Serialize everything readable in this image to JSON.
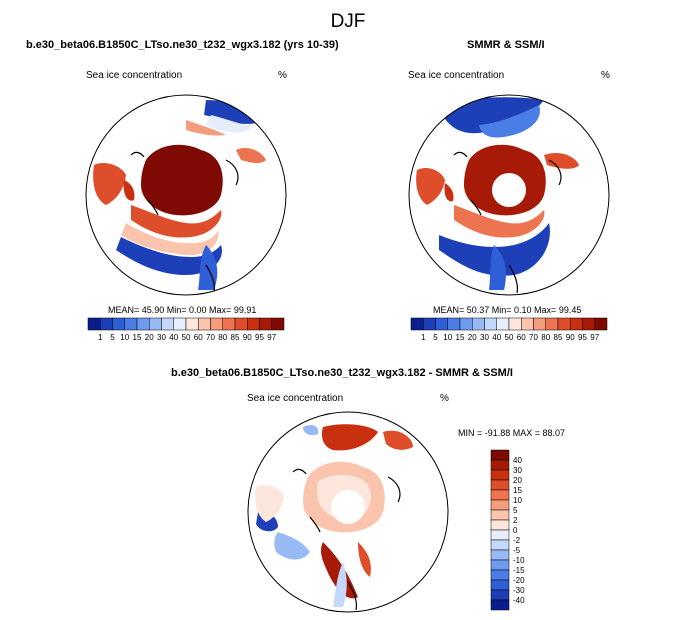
{
  "title": "DJF",
  "panels": [
    {
      "title": "b.e30_beta06.B1850C_LTso.ne30_t232_wgx3.182 (yrs 10-39)",
      "left_label": "Sea ice concentration",
      "right_label": "%",
      "stats": "MEAN=  45.90  Min=   0.00  Max=  99.91",
      "pole_hole": false
    },
    {
      "title": "SMMR & SSM/I",
      "left_label": "Sea ice concentration",
      "right_label": "%",
      "stats": "MEAN=  50.37  Min=   0.10  Max=  99.45",
      "pole_hole": true
    },
    {
      "title": "b.e30_beta06.B1850C_LTso.ne30_t232_wgx3.182 - SMMR & SSM/I",
      "left_label": "Sea ice concentration",
      "right_label": "%",
      "stats": "MIN = -91.88 MAX =  88.07",
      "pole_hole": true
    }
  ],
  "colorbar_horizontal": {
    "labels": [
      "1",
      "5",
      "10",
      "15",
      "20",
      "30",
      "40",
      "50",
      "60",
      "70",
      "80",
      "85",
      "90",
      "95",
      "97"
    ],
    "colors": [
      "#0a1e8c",
      "#1d3fb8",
      "#2f5fd6",
      "#4a7de6",
      "#6e9bee",
      "#98baf4",
      "#c3d8fa",
      "#e6eefc",
      "#fde6dc",
      "#fbc4ad",
      "#f59c7c",
      "#ec7450",
      "#de4e2b",
      "#c9300f",
      "#a81a08",
      "#7f0a03"
    ]
  },
  "colorbar_vertical": {
    "labels": [
      "40",
      "30",
      "20",
      "15",
      "10",
      "5",
      "2",
      "0",
      "-2",
      "-5",
      "-10",
      "-15",
      "-20",
      "-30",
      "-40"
    ],
    "colors": [
      "#7f0a03",
      "#a81a08",
      "#c9300f",
      "#de4e2b",
      "#ec7450",
      "#f59c7c",
      "#fbc4ad",
      "#fde6dc",
      "#e6eefc",
      "#c3d8fa",
      "#98baf4",
      "#6e9bee",
      "#4a7de6",
      "#2f5fd6",
      "#1d3fb8",
      "#0a1e8c"
    ]
  }
}
